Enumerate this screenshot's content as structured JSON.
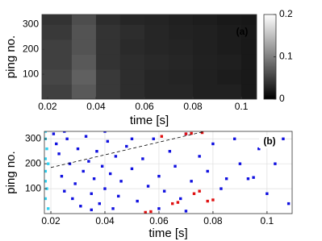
{
  "chart_data": [
    {
      "type": "heatmap",
      "annotation": "(a)",
      "xlabel": "time [s]",
      "ylabel": "ping no.",
      "xlim": [
        0.0177,
        0.1063
      ],
      "ylim": [
        0,
        340
      ],
      "xticks": [
        0.02,
        0.04,
        0.06,
        0.08,
        0.1
      ],
      "yticks": [
        100,
        200,
        300
      ],
      "xbins": [
        0.0177,
        0.03,
        0.04,
        0.05,
        0.06,
        0.07,
        0.08,
        0.09,
        0.1,
        0.1063
      ],
      "ybins": [
        0,
        60,
        120,
        180,
        240,
        300,
        340
      ],
      "values": [
        [
          0.05,
          0.07,
          0.045,
          0.035,
          0.03,
          0.03,
          0.025,
          0.025,
          0.02
        ],
        [
          0.055,
          0.075,
          0.045,
          0.035,
          0.03,
          0.028,
          0.025,
          0.022,
          0.02
        ],
        [
          0.05,
          0.07,
          0.04,
          0.035,
          0.032,
          0.03,
          0.026,
          0.024,
          0.02
        ],
        [
          0.05,
          0.065,
          0.04,
          0.033,
          0.03,
          0.028,
          0.025,
          0.022,
          0.02
        ],
        [
          0.045,
          0.065,
          0.04,
          0.035,
          0.03,
          0.027,
          0.025,
          0.022,
          0.02
        ],
        [
          0.04,
          0.06,
          0.035,
          0.03,
          0.028,
          0.025,
          0.023,
          0.02,
          0.018
        ]
      ],
      "colormap": "gray",
      "clim": [
        0,
        0.2
      ],
      "cticks": [
        0,
        0.1,
        0.2
      ]
    },
    {
      "type": "scatter",
      "annotation": "(b)",
      "xlabel": "time [s]",
      "ylabel": "ping no.",
      "xlim": [
        0.0176,
        0.1093
      ],
      "ylim": [
        0,
        330
      ],
      "xticks": [
        0.02,
        0.04,
        0.06,
        0.08,
        0.1
      ],
      "yticks": [
        100,
        200,
        300
      ],
      "grid": true,
      "series": [
        {
          "color": "#1010e0",
          "x": [
            0.021,
            0.022,
            0.023,
            0.024,
            0.025,
            0.026,
            0.027,
            0.028,
            0.029,
            0.03,
            0.031,
            0.032,
            0.033,
            0.034,
            0.035,
            0.036,
            0.037,
            0.038,
            0.039,
            0.04,
            0.041,
            0.042,
            0.043,
            0.044,
            0.045,
            0.046,
            0.048,
            0.05,
            0.052,
            0.054,
            0.056,
            0.058,
            0.06,
            0.062,
            0.064,
            0.066,
            0.068,
            0.07,
            0.072,
            0.075,
            0.078,
            0.08,
            0.083,
            0.085,
            0.088,
            0.09,
            0.093,
            0.095,
            0.097,
            0.1,
            0.103,
            0.106,
            0.108,
            0.025,
            0.035,
            0.04,
            0.05,
            0.06,
            0.07
          ],
          "y": [
            320,
            280,
            240,
            150,
            90,
            300,
            200,
            60,
            120,
            260,
            30,
            170,
            310,
            210,
            80,
            140,
            250,
            40,
            190,
            100,
            290,
            160,
            20,
            230,
            70,
            130,
            270,
            180,
            50,
            220,
            110,
            300,
            150,
            90,
            250,
            190,
            60,
            320,
            130,
            230,
            170,
            280,
            100,
            140,
            300,
            200,
            140,
            145,
            260,
            80,
            200,
            300,
            40,
            330,
            15,
            330,
            300,
            20,
            10
          ]
        },
        {
          "color": "#30d0f0",
          "x": [
            0.018,
            0.018,
            0.0185,
            0.018,
            0.019,
            0.018,
            0.0185,
            0.018,
            0.019,
            0.018
          ],
          "y": [
            330,
            300,
            260,
            220,
            200,
            130,
            100,
            60,
            20,
            170
          ]
        },
        {
          "color": "#e01010",
          "x": [
            0.055,
            0.057,
            0.065,
            0.067,
            0.073,
            0.075,
            0.078,
            0.08,
            0.07,
            0.072,
            0.076,
            0.061
          ],
          "y": [
            5,
            8,
            40,
            45,
            80,
            90,
            50,
            55,
            320,
            322,
            325,
            310
          ]
        }
      ],
      "lines": [
        {
          "color": "#000000",
          "dash": true,
          "x": [
            0.02,
            0.077
          ],
          "y": [
            185,
            330
          ]
        }
      ]
    }
  ]
}
